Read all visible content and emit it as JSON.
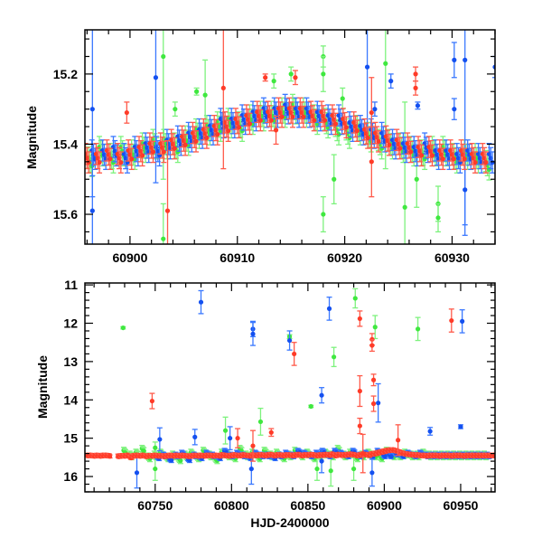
{
  "chart_data": [
    {
      "type": "scatter",
      "title": "",
      "xlabel": "",
      "ylabel": "Magnitude",
      "xlim": [
        60895.8,
        60934.0
      ],
      "ylim": [
        15.685,
        15.074
      ],
      "y_inverted": true,
      "grid": false,
      "xticks": [
        60900,
        60910,
        60920,
        60930
      ],
      "xtick_labels": [
        "60900",
        "60910",
        "60920",
        "60930"
      ],
      "yticks": [
        15.2,
        15.4,
        15.6
      ],
      "ytick_labels": [
        "15.2",
        "15.4",
        "15.6"
      ],
      "model_line": {
        "color": "#000000",
        "x_start": 60896,
        "x_step": 1,
        "mag": [
          15.44,
          15.44,
          15.43,
          15.43,
          15.43,
          15.42,
          15.41,
          15.41,
          15.4,
          15.39,
          15.38,
          15.37,
          15.36,
          15.35,
          15.34,
          15.33,
          15.32,
          15.32,
          15.31,
          15.31,
          15.31,
          15.32,
          15.32,
          15.33,
          15.34,
          15.35,
          15.37,
          15.38,
          15.39,
          15.4,
          15.41,
          15.42,
          15.42,
          15.43,
          15.43,
          15.43,
          15.44,
          15.44
        ]
      },
      "series": [
        {
          "name": "green",
          "color": "#3fe83f",
          "bar_color": "#7df27d",
          "regular": {
            "x_start": 60896.3,
            "x_step": 1,
            "err": 0.03,
            "mag": [
              15.45,
              15.42,
              15.44,
              15.42,
              15.43,
              15.41,
              15.4,
              15.4,
              15.41,
              15.39,
              15.37,
              15.36,
              15.35,
              15.34,
              15.35,
              15.33,
              15.32,
              15.32,
              15.31,
              15.3,
              15.31,
              15.33,
              15.34,
              15.36,
              15.37,
              15.36,
              15.38,
              15.4,
              15.4,
              15.41,
              15.42,
              15.43,
              15.42,
              15.42,
              15.44,
              15.43,
              15.44,
              15.46
            ]
          },
          "outliers": [
            [
              60903.1,
              15.15,
              0.35
            ],
            [
              60903.1,
              15.67,
              0.1
            ],
            [
              60906.2,
              15.25,
              0.01
            ],
            [
              60907.0,
              15.26,
              0.1
            ],
            [
              60904.2,
              15.3,
              0.02
            ],
            [
              60913.4,
              15.22,
              0.02
            ],
            [
              60915.0,
              15.2,
              0.02
            ],
            [
              60918.0,
              15.15,
              0.03
            ],
            [
              60918.0,
              15.2,
              0.05
            ],
            [
              60918.0,
              15.6,
              0.05
            ],
            [
              60919.0,
              15.5,
              0.07
            ],
            [
              60919.8,
              15.27,
              0.03
            ],
            [
              60923.8,
              15.17,
              0.3
            ],
            [
              60925.6,
              15.58,
              0.3
            ],
            [
              60926.7,
              15.5,
              0.08
            ],
            [
              60928.7,
              15.57,
              0.05
            ],
            [
              60928.7,
              15.61,
              0.04
            ]
          ]
        },
        {
          "name": "blue",
          "color": "#1450f0",
          "bar_color": "#3a78ff",
          "regular": {
            "x_start": 60896.6,
            "x_step": 1,
            "err": 0.03,
            "mag": [
              15.43,
              15.43,
              15.42,
              15.44,
              15.42,
              15.41,
              15.42,
              15.4,
              15.39,
              15.38,
              15.37,
              15.36,
              15.34,
              15.34,
              15.33,
              15.32,
              15.31,
              15.31,
              15.3,
              15.31,
              15.31,
              15.32,
              15.33,
              15.33,
              15.35,
              15.36,
              15.37,
              15.38,
              15.4,
              15.41,
              15.42,
              15.41,
              15.43,
              15.43,
              15.44,
              15.43,
              15.44,
              15.44
            ]
          },
          "outliers": [
            [
              60896.5,
              15.3,
              0.25
            ],
            [
              60896.5,
              15.59,
              0.1
            ],
            [
              60902.4,
              15.21,
              0.3
            ],
            [
              60922.1,
              15.18,
              0.2
            ],
            [
              60922.8,
              15.3,
              0.02
            ],
            [
              60924.3,
              15.22,
              0.02
            ],
            [
              60926.8,
              15.29,
              0.01
            ],
            [
              60930.2,
              15.16,
              0.05
            ],
            [
              60930.2,
              15.3,
              0.03
            ],
            [
              60931.2,
              15.16,
              0.5
            ],
            [
              60931.2,
              15.53,
              0.1
            ],
            [
              60934.0,
              15.18,
              0.03
            ]
          ]
        },
        {
          "name": "red",
          "color": "#ff3b28",
          "bar_color": "#ff5a4a",
          "regular": {
            "x_start": 60896.0,
            "x_step": 1,
            "err": 0.03,
            "mag": [
              15.44,
              15.44,
              15.43,
              15.44,
              15.43,
              15.42,
              15.41,
              15.41,
              15.4,
              15.39,
              15.38,
              15.37,
              15.36,
              15.35,
              15.34,
              15.33,
              15.32,
              15.32,
              15.31,
              15.31,
              15.31,
              15.32,
              15.32,
              15.33,
              15.34,
              15.35,
              15.37,
              15.38,
              15.39,
              15.4,
              15.41,
              15.42,
              15.42,
              15.43,
              15.43,
              15.43,
              15.44,
              15.44
            ]
          },
          "outliers": [
            [
              60899.7,
              15.31,
              0.03
            ],
            [
              60903.5,
              15.59,
              0.2
            ],
            [
              60908.7,
              15.24,
              0.23
            ],
            [
              60912.6,
              15.21,
              0.01
            ],
            [
              60913.6,
              15.36,
              0.04
            ],
            [
              60915.4,
              15.21,
              0.02
            ],
            [
              60922.5,
              15.31,
              0.1
            ],
            [
              60922.5,
              15.45,
              0.1
            ],
            [
              60926.6,
              15.2,
              0.02
            ],
            [
              60926.6,
              15.24,
              0.02
            ]
          ]
        }
      ]
    },
    {
      "type": "scatter",
      "title": "",
      "xlabel": "HJD-2400000",
      "ylabel": "Magnitude",
      "xlim": [
        60704,
        60972.5
      ],
      "ylim": [
        16.4,
        10.95
      ],
      "y_inverted": true,
      "grid": false,
      "xticks": [
        60750,
        60800,
        60850,
        60900,
        60950
      ],
      "xtick_labels": [
        "60750",
        "60800",
        "60850",
        "60900",
        "60950"
      ],
      "yticks": [
        11,
        12,
        13,
        14,
        15,
        16
      ],
      "ytick_labels": [
        "11",
        "12",
        "13",
        "14",
        "15",
        "16"
      ],
      "series": [
        {
          "name": "green",
          "color": "#3fe83f",
          "bar_color": "#7df27d",
          "regular": {
            "x_start": 60730,
            "x_step": 4,
            "err": 0.08,
            "mag": [
              15.35,
              15.45,
              15.4,
              15.3,
              15.5,
              15.45,
              15.4,
              15.5,
              15.45,
              15.55,
              15.45,
              15.4,
              15.5,
              15.35,
              15.45,
              15.55,
              15.4,
              15.45,
              15.5,
              15.3,
              15.45,
              15.4,
              15.5,
              15.35,
              15.45,
              15.4,
              15.5,
              15.45,
              15.35,
              15.45,
              15.4,
              15.5,
              15.45,
              15.4,
              15.45,
              15.3,
              15.45,
              15.4,
              15.5,
              15.45,
              15.4,
              15.45,
              15.5,
              15.35,
              15.45,
              15.45,
              15.4,
              15.45,
              15.45,
              15.4,
              15.45,
              15.45,
              15.45,
              15.45,
              15.45,
              15.45,
              15.45,
              15.45,
              15.45,
              15.45
            ]
          },
          "outliers": [
            [
              60729,
              12.12,
              0.03
            ],
            [
              60838,
              12.35,
              0.05
            ],
            [
              60881,
              11.35,
              0.25
            ],
            [
              60867,
              12.88,
              0.25
            ],
            [
              60894,
              12.1,
              0.3
            ],
            [
              60922,
              12.15,
              0.3
            ],
            [
              60852,
              14.17,
              0.03
            ],
            [
              60819,
              14.57,
              0.35
            ],
            [
              60796,
              14.8,
              0.35
            ],
            [
              60750,
              15.8,
              0.3
            ],
            [
              60865,
              15.85,
              0.4
            ],
            [
              60750,
              15.25,
              0.15
            ],
            [
              60856,
              15.8,
              0.3
            ],
            [
              60880,
              15.8,
              0.3
            ]
          ]
        },
        {
          "name": "blue",
          "color": "#1450f0",
          "bar_color": "#3a78ff",
          "regular": {
            "x_start": 60752,
            "x_step": 4,
            "err": 0.06,
            "mag": [
              15.5,
              15.45,
              15.55,
              15.45,
              15.4,
              15.55,
              15.45,
              15.5,
              15.4,
              15.45,
              15.5,
              15.35,
              15.45,
              15.4,
              15.45,
              15.5,
              15.4,
              15.45,
              15.45,
              15.5,
              15.45,
              15.4,
              15.45,
              15.35,
              15.4,
              15.45,
              15.4,
              15.35,
              15.45,
              15.35,
              15.4,
              15.45,
              15.35,
              15.45,
              15.4,
              15.45,
              15.35,
              15.45,
              15.45,
              15.4,
              15.45,
              15.4,
              15.45,
              15.4,
              15.45,
              15.45,
              15.45,
              15.45,
              15.45,
              15.45,
              15.45,
              15.45,
              15.45,
              15.45,
              15.45
            ]
          },
          "outliers": [
            [
              60780,
              11.45,
              0.3
            ],
            [
              60814,
              12.15,
              0.2
            ],
            [
              60814,
              12.28,
              0.3
            ],
            [
              60838,
              12.45,
              0.25
            ],
            [
              60864,
              11.62,
              0.3
            ],
            [
              60859,
              13.88,
              0.2
            ],
            [
              60896,
              14.08,
              0.5
            ],
            [
              60951,
              11.95,
              0.3
            ],
            [
              60738,
              15.9,
              0.4
            ],
            [
              60753,
              15.03,
              0.3
            ],
            [
              60776,
              14.97,
              0.2
            ],
            [
              60799,
              15.0,
              0.3
            ],
            [
              60813,
              15.8,
              0.4
            ],
            [
              60892,
              15.9,
              0.35
            ],
            [
              60930,
              14.82,
              0.1
            ],
            [
              60950,
              14.7,
              0.05
            ],
            [
              60859,
              15.6,
              0.3
            ]
          ]
        },
        {
          "name": "red",
          "color": "#ff3b28",
          "bar_color": "#ff5a4a",
          "regular": {
            "x_start": 60706,
            "x_step": 2,
            "err": 0.04,
            "mag": [
              15.45,
              15.45,
              15.46,
              15.45,
              15.46,
              15.45,
              15.45,
              15.46,
              null,
              null,
              15.47,
              15.46,
              15.46,
              15.45,
              15.5,
              15.46,
              15.45,
              15.46,
              15.45,
              15.47,
              15.46,
              15.46,
              15.45,
              15.46,
              15.46,
              15.47,
              15.46,
              15.45,
              15.46,
              15.45,
              15.46,
              15.45,
              15.46,
              15.47,
              15.46,
              15.45,
              15.46,
              15.45,
              15.46,
              15.45,
              15.45,
              15.46,
              15.45,
              15.46,
              15.44,
              15.45,
              15.46,
              15.45,
              15.44,
              15.45,
              15.45,
              15.44,
              15.45,
              15.46,
              15.44,
              15.45,
              15.44,
              15.44,
              15.45,
              15.44,
              15.43,
              15.45,
              15.44,
              15.44,
              15.45,
              15.44,
              15.44,
              15.45,
              15.44,
              15.43,
              15.45,
              15.44,
              15.44,
              15.43,
              15.44,
              15.45,
              15.44,
              15.44,
              15.43,
              15.44,
              15.42,
              15.45,
              15.43,
              15.44,
              15.44,
              15.43,
              15.42,
              15.43,
              15.45,
              15.44,
              15.42,
              15.43,
              15.44,
              15.41,
              15.4,
              15.38,
              15.36,
              15.34,
              15.32,
              15.31,
              15.31,
              15.33,
              15.36,
              15.39,
              15.41,
              15.42,
              15.43,
              15.44,
              15.44,
              15.45,
              15.45,
              15.46,
              15.45,
              15.45,
              15.45,
              15.46,
              15.45,
              15.45,
              15.45,
              15.46,
              15.45,
              15.45,
              15.45,
              15.46,
              15.45,
              15.45,
              15.45,
              15.45,
              15.45,
              15.45,
              15.45,
              15.45,
              15.45,
              15.45
            ]
          },
          "outliers": [
            [
              60748,
              14.03,
              0.2
            ],
            [
              60841,
              12.8,
              0.3
            ],
            [
              60884,
              11.88,
              0.2
            ],
            [
              60884,
              13.77,
              0.4
            ],
            [
              60892,
              12.42,
              0.15
            ],
            [
              60892,
              12.58,
              0.15
            ],
            [
              60893,
              13.48,
              0.15
            ],
            [
              60893,
              14.1,
              0.2
            ],
            [
              60944,
              11.93,
              0.3
            ],
            [
              60884,
              14.68,
              0.2
            ],
            [
              60826,
              14.85,
              0.1
            ],
            [
              60804,
              15.0,
              0.25
            ],
            [
              60909,
              15.05,
              0.4
            ],
            [
              60814,
              15.2,
              0.4
            ],
            [
              60886,
              15.4,
              0.5
            ]
          ]
        }
      ]
    }
  ]
}
